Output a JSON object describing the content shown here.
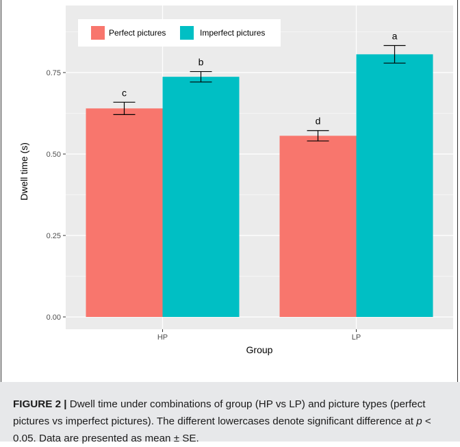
{
  "chart_data": {
    "type": "bar",
    "title": "",
    "xlabel": "Group",
    "ylabel": "Dwell time (s)",
    "categories": [
      "HP",
      "LP"
    ],
    "series": [
      {
        "name": "Perfect pictures",
        "color": "#F8766D",
        "values": [
          0.64,
          0.556
        ],
        "se": [
          0.019,
          0.016
        ],
        "labels": [
          "c",
          "d"
        ]
      },
      {
        "name": "Imperfect pictures",
        "color": "#00BFC4",
        "values": [
          0.737,
          0.806
        ],
        "se": [
          0.016,
          0.027
        ],
        "labels": [
          "b",
          "a"
        ]
      }
    ],
    "ylim": [
      0,
      0.9
    ],
    "yticks": [
      0.0,
      0.25,
      0.5,
      0.75
    ],
    "ytick_labels": [
      "0.00",
      "0.25",
      "0.50",
      "0.75"
    ],
    "grid": true,
    "legend_position": "top-left",
    "panel_color": "#EBEBEB",
    "grid_color": "#FFFFFF"
  },
  "caption": {
    "label": "FIGURE 2 |",
    "text_before_p": " Dwell time under combinations of group (HP vs LP) and picture types (perfect pictures vs imperfect pictures). The different lowercases denote significant difference at ",
    "p_symbol": "p",
    "text_after_p": " < 0.05. Data are presented as mean ± SE."
  }
}
